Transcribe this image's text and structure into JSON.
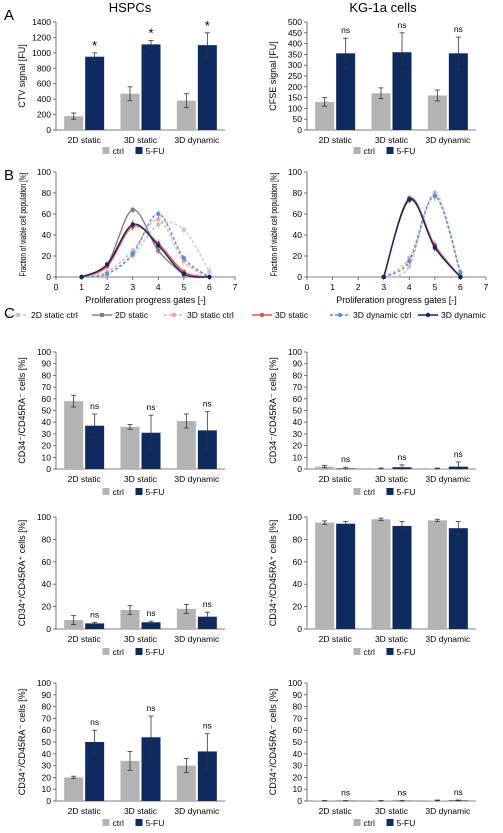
{
  "panel_letters": [
    "A",
    "B",
    "C"
  ],
  "column_titles": [
    "HSPCs",
    "KG-1a cells"
  ],
  "colors": {
    "ctrl": "#b3b3b3",
    "fu": "#0e2a5e",
    "line_2d": "#808080",
    "line_2d_ctrl": "#c8c8c8",
    "line_3d": "#e05050",
    "line_3d_ctrl": "#f0a8a8",
    "line_3ddyn": "#15255e",
    "line_3ddyn_ctrl": "#5b8fd6"
  },
  "chart_data": [
    {
      "type": "bar",
      "id": "A-HSPC",
      "categories": [
        "2D static",
        "3D static",
        "3D dynamic"
      ],
      "series": [
        {
          "name": "ctrl",
          "values": [
            180,
            470,
            380
          ],
          "errors": [
            40,
            90,
            90
          ]
        },
        {
          "name": "5-FU",
          "values": [
            950,
            1110,
            1100
          ],
          "errors": [
            50,
            50,
            160
          ]
        }
      ],
      "sig": [
        "*",
        "*",
        "*"
      ],
      "ylabel": "CTV signal [FU]",
      "ylim": [
        0,
        1400
      ],
      "yticks": [
        "0",
        "200",
        "400",
        "600",
        "800",
        "1000",
        "1200",
        "1400"
      ],
      "legend": [
        "ctrl",
        "5-FU"
      ]
    },
    {
      "type": "bar",
      "id": "A-KG1a",
      "categories": [
        "2D static",
        "3D static",
        "3D dynamic"
      ],
      "series": [
        {
          "name": "ctrl",
          "values": [
            130,
            170,
            160
          ],
          "errors": [
            20,
            25,
            25
          ]
        },
        {
          "name": "5-FU",
          "values": [
            355,
            360,
            355
          ],
          "errors": [
            70,
            90,
            75
          ]
        }
      ],
      "sig": [
        "ns",
        "ns",
        "ns"
      ],
      "ylabel": "CFSE signal [FU]",
      "ylim": [
        0,
        500
      ],
      "yticks": [
        "0",
        "50",
        "100",
        "150",
        "200",
        "250",
        "300",
        "350",
        "400",
        "450",
        "500"
      ],
      "legend": [
        "ctrl",
        "5-FU"
      ]
    },
    {
      "type": "line",
      "id": "B-HSPC",
      "x": [
        0,
        1,
        2,
        3,
        4,
        5,
        6,
        7
      ],
      "series": [
        {
          "name": "2D static ctrl",
          "x": [
            1,
            2,
            3,
            4,
            5,
            6
          ],
          "values": [
            0,
            3,
            20,
            50,
            45,
            5
          ],
          "errors": [
            0,
            1,
            3,
            5,
            4,
            6
          ]
        },
        {
          "name": "2D static",
          "x": [
            1,
            2,
            3,
            4,
            5
          ],
          "values": [
            0,
            12,
            64,
            25,
            2
          ],
          "errors": [
            0,
            2,
            3,
            3,
            1
          ]
        },
        {
          "name": "3D static ctrl",
          "x": [
            1,
            2,
            3,
            4,
            5,
            6
          ],
          "values": [
            0,
            5,
            25,
            55,
            15,
            0
          ],
          "errors": [
            0,
            1,
            3,
            5,
            3,
            0
          ]
        },
        {
          "name": "3D static",
          "x": [
            1,
            2,
            3,
            4,
            5,
            6
          ],
          "values": [
            0,
            10,
            48,
            32,
            5,
            0
          ],
          "errors": [
            0,
            2,
            4,
            4,
            2,
            0
          ]
        },
        {
          "name": "3D dynamic ctrl",
          "x": [
            1,
            2,
            3,
            4,
            5,
            6
          ],
          "values": [
            0,
            3,
            22,
            60,
            18,
            0
          ],
          "errors": [
            0,
            1,
            3,
            4,
            3,
            0
          ]
        },
        {
          "name": "3D dynamic",
          "x": [
            1,
            2,
            3,
            4,
            5,
            6
          ],
          "values": [
            0,
            12,
            50,
            30,
            3,
            0
          ],
          "errors": [
            0,
            2,
            4,
            4,
            1,
            0
          ]
        }
      ],
      "ylabel": "Fraction of viable cell population [%]",
      "xlabel": "Proliferation progress gates [-]",
      "xlim": [
        0,
        7
      ],
      "ylim": [
        0,
        100
      ],
      "yticks": [
        "0",
        "20",
        "40",
        "60",
        "80",
        "100"
      ],
      "xticks": [
        "0",
        "1",
        "2",
        "3",
        "4",
        "5",
        "6",
        "7"
      ]
    },
    {
      "type": "line",
      "id": "B-KG1a",
      "x": [
        0,
        1,
        2,
        3,
        4,
        5,
        6,
        7
      ],
      "series": [
        {
          "name": "2D static ctrl",
          "x": [
            3,
            4,
            5,
            6
          ],
          "values": [
            0,
            10,
            80,
            5
          ],
          "errors": [
            0,
            2,
            4,
            3
          ]
        },
        {
          "name": "2D static",
          "x": [
            3,
            4,
            5,
            6
          ],
          "values": [
            0,
            73,
            30,
            0
          ],
          "errors": [
            0,
            3,
            4,
            0
          ]
        },
        {
          "name": "3D static ctrl",
          "x": [
            3,
            4,
            5,
            6
          ],
          "values": [
            0,
            18,
            78,
            3
          ],
          "errors": [
            0,
            3,
            5,
            2
          ]
        },
        {
          "name": "3D static",
          "x": [
            3,
            4,
            5,
            6
          ],
          "values": [
            0,
            75,
            30,
            0
          ],
          "errors": [
            0,
            3,
            4,
            0
          ]
        },
        {
          "name": "3D dynamic ctrl",
          "x": [
            3,
            4,
            5,
            6
          ],
          "values": [
            0,
            15,
            77,
            4
          ],
          "errors": [
            0,
            3,
            5,
            2
          ]
        },
        {
          "name": "3D dynamic",
          "x": [
            3,
            4,
            5,
            6
          ],
          "values": [
            0,
            74,
            28,
            0
          ],
          "errors": [
            0,
            3,
            4,
            0
          ]
        }
      ],
      "ylabel": "Fraction of viable cell population [%]",
      "xlabel": "Proliferation progress gates [-]",
      "xlim": [
        0,
        7
      ],
      "ylim": [
        0,
        100
      ],
      "yticks": [
        "0",
        "20",
        "40",
        "60",
        "80",
        "100"
      ],
      "xticks": [
        "0",
        "1",
        "2",
        "3",
        "4",
        "5",
        "6",
        "7"
      ]
    },
    {
      "type": "bar",
      "id": "C-HSPC-1",
      "categories": [
        "2D static",
        "3D static",
        "3D dynamic"
      ],
      "series": [
        {
          "name": "ctrl",
          "values": [
            58,
            36,
            41
          ],
          "errors": [
            5,
            2,
            6
          ]
        },
        {
          "name": "5-FU",
          "values": [
            37,
            31,
            33
          ],
          "errors": [
            10,
            15,
            16
          ]
        }
      ],
      "sig": [
        "ns",
        "ns",
        "ns"
      ],
      "ylabel": "CD34⁻/CD45RA⁻ cells [%]",
      "ylim": [
        0,
        100
      ],
      "yticks": [
        "0",
        "10",
        "20",
        "30",
        "40",
        "50",
        "60",
        "70",
        "80",
        "90",
        "100"
      ],
      "legend": [
        "ctrl",
        "5-FU"
      ]
    },
    {
      "type": "bar",
      "id": "C-KG1a-1",
      "categories": [
        "2D static",
        "3D static",
        "3D dynamic"
      ],
      "series": [
        {
          "name": "ctrl",
          "values": [
            2,
            0.5,
            0.5
          ],
          "errors": [
            1,
            0.3,
            0.3
          ]
        },
        {
          "name": "5-FU",
          "values": [
            0.5,
            1.5,
            2
          ],
          "errors": [
            1,
            2,
            4
          ]
        }
      ],
      "sig": [
        "ns",
        "ns",
        "ns"
      ],
      "ylabel": "CD34⁻/CD45RA⁻ cells [%]",
      "ylim": [
        0,
        100
      ],
      "yticks": [
        "0",
        "10",
        "20",
        "30",
        "40",
        "50",
        "60",
        "70",
        "80",
        "90",
        "100"
      ],
      "legend": [
        "ctrl",
        "5-FU"
      ]
    },
    {
      "type": "bar",
      "id": "C-HSPC-2",
      "categories": [
        "2D static",
        "3D static",
        "3D dynamic"
      ],
      "series": [
        {
          "name": "ctrl",
          "values": [
            8,
            17,
            18
          ],
          "errors": [
            4,
            4,
            4
          ]
        },
        {
          "name": "5-FU",
          "values": [
            5,
            6,
            11
          ],
          "errors": [
            1,
            1,
            4
          ]
        }
      ],
      "sig": [
        "ns",
        "ns",
        "ns"
      ],
      "ylabel": "CD34⁺/CD45RA⁺ cells [%]",
      "ylim": [
        0,
        100
      ],
      "yticks": [
        "0",
        "20",
        "40",
        "60",
        "80",
        "100"
      ],
      "legend": [
        "ctrl",
        "5-FU"
      ]
    },
    {
      "type": "bar",
      "id": "C-KG1a-2",
      "categories": [
        "2D static",
        "3D static",
        "3D dynamic"
      ],
      "series": [
        {
          "name": "ctrl",
          "values": [
            95,
            98,
            97
          ],
          "errors": [
            1.5,
            1,
            1
          ]
        },
        {
          "name": "5-FU",
          "values": [
            94,
            92,
            90
          ],
          "errors": [
            2,
            4,
            6
          ]
        }
      ],
      "sig": [
        "",
        "",
        ""
      ],
      "ylabel": "CD34⁺/CD45RA⁺ cells [%]",
      "ylim": [
        0,
        100
      ],
      "yticks": [
        "0",
        "20",
        "40",
        "60",
        "80",
        "100"
      ],
      "legend": [
        "ctrl",
        "5-FU"
      ]
    },
    {
      "type": "bar",
      "id": "C-HSPC-3",
      "categories": [
        "2D static",
        "3D static",
        "3D dynamic"
      ],
      "series": [
        {
          "name": "ctrl",
          "values": [
            20,
            34,
            30
          ],
          "errors": [
            1,
            8,
            6
          ]
        },
        {
          "name": "5-FU",
          "values": [
            50,
            54,
            42
          ],
          "errors": [
            10,
            18,
            15
          ]
        }
      ],
      "sig": [
        "ns",
        "ns",
        "ns"
      ],
      "ylabel": "CD34⁺/CD45RA⁻ cells [%]",
      "ylim": [
        0,
        100
      ],
      "yticks": [
        "0",
        "10",
        "20",
        "30",
        "40",
        "50",
        "60",
        "70",
        "80",
        "90",
        "100"
      ],
      "legend": [
        "ctrl",
        "5-FU"
      ]
    },
    {
      "type": "bar",
      "id": "C-KG1a-3",
      "categories": [
        "2D static",
        "3D static",
        "3D dynamic"
      ],
      "series": [
        {
          "name": "ctrl",
          "values": [
            0.2,
            0.2,
            0.5
          ],
          "errors": [
            0.2,
            0.2,
            0.3
          ]
        },
        {
          "name": "5-FU",
          "values": [
            0.2,
            0.2,
            0.5
          ],
          "errors": [
            0.2,
            0.2,
            0.3
          ]
        }
      ],
      "sig": [
        "ns",
        "ns",
        "ns"
      ],
      "ylabel": "CD34⁺/CD45RA⁻ cells [%]",
      "ylim": [
        0,
        100
      ],
      "yticks": [
        "0",
        "10",
        "20",
        "30",
        "40",
        "50",
        "60",
        "70",
        "80",
        "90",
        "100"
      ],
      "legend": [
        "ctrl",
        "5-FU"
      ]
    }
  ],
  "line_legend": [
    "2D static ctrl",
    "2D static",
    "3D static ctrl",
    "3D static",
    "3D dynamic ctrl",
    "3D dynamic"
  ]
}
